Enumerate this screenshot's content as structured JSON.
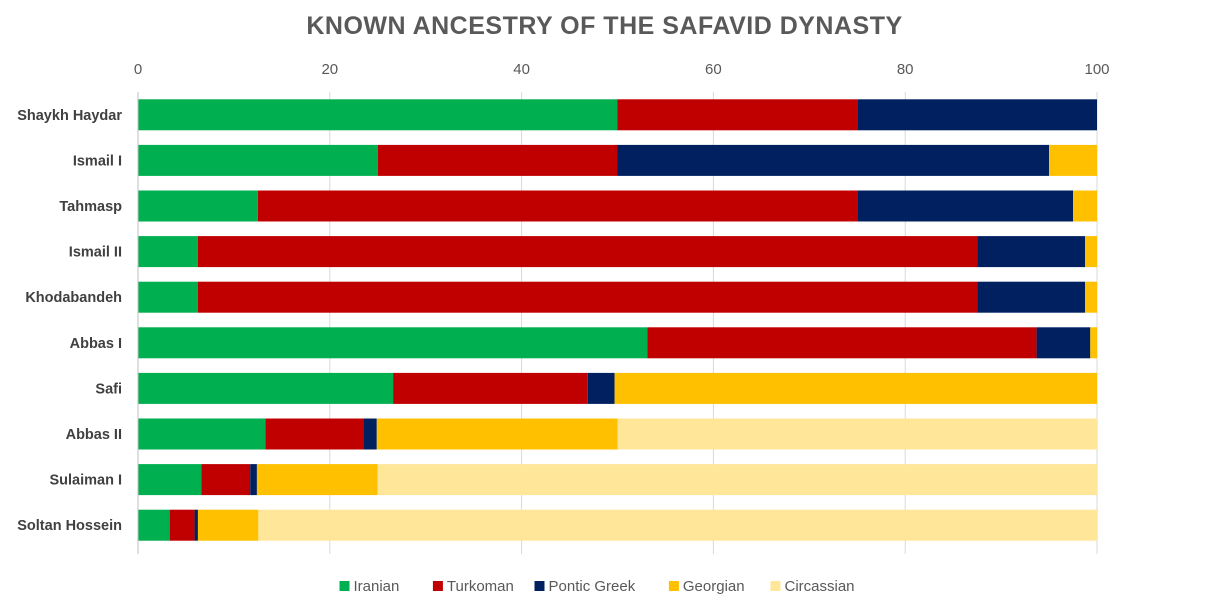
{
  "chart_data": {
    "type": "bar",
    "orientation": "horizontal",
    "stacked": true,
    "title": "KNOWN ANCESTRY OF THE SAFAVID DYNASTY",
    "xlabel": "",
    "ylabel": "",
    "xlim": [
      0,
      100
    ],
    "x_ticks": [
      "0",
      "20",
      "40",
      "60",
      "80",
      "100"
    ],
    "x_axis_position": "top",
    "grid": true,
    "legend_position": "bottom",
    "categories": [
      "Shaykh Haydar",
      "Ismail I",
      "Tahmasp",
      "Ismail II",
      "Khodabandeh",
      "Abbas I",
      "Safi",
      "Abbas II",
      "Sulaiman I",
      "Soltan Hossein"
    ],
    "series": [
      {
        "name": "Iranian",
        "color": "#00B050",
        "values": [
          50,
          25,
          12.5,
          6.25,
          6.25,
          53.1,
          26.6,
          13.3,
          6.6,
          3.3
        ]
      },
      {
        "name": "Turkoman",
        "color": "#C00000",
        "values": [
          25,
          25,
          62.5,
          81.25,
          81.25,
          40.6,
          20.3,
          10.2,
          5.1,
          2.6
        ]
      },
      {
        "name": "Pontic Greek",
        "color": "#002060",
        "values": [
          25,
          45,
          22.5,
          11.25,
          11.25,
          5.6,
          2.8,
          1.4,
          0.7,
          0.35
        ]
      },
      {
        "name": "Georgian",
        "color": "#FFC000",
        "values": [
          0,
          5,
          2.5,
          1.25,
          1.25,
          0.7,
          50.3,
          25.1,
          12.6,
          6.3
        ]
      },
      {
        "name": "Circassian",
        "color": "#FFE699",
        "values": [
          0,
          0,
          0,
          0,
          0,
          0,
          0,
          50,
          75,
          87.45
        ]
      }
    ]
  }
}
